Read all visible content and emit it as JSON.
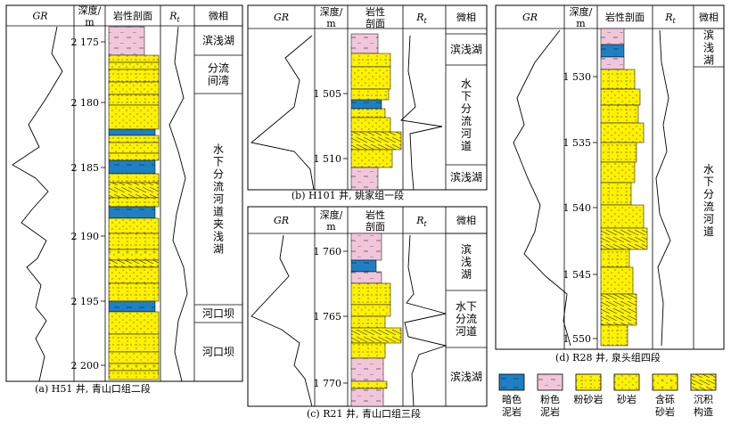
{
  "panels": [
    {
      "caption": "(a) H51 井, 青山口组二段",
      "headers": {
        "gr": "GR",
        "depth_line1": "深度/",
        "depth_line2": "m",
        "litho": "岩性剖面",
        "rt": "R",
        "rt_sub": "t",
        "facies": "微相"
      },
      "depths": [
        "2 175",
        "2 180",
        "2 185",
        "2 190",
        "2 195",
        "2 200"
      ],
      "facies": [
        {
          "label": "滨浅湖"
        },
        {
          "label": "分流\n间湾"
        },
        {
          "label": "水\n下\n分\n流\n河\n道\n夹\n浅\n湖"
        },
        {
          "label": "河口坝"
        },
        {
          "label": "河口坝"
        }
      ]
    },
    {
      "caption": "(b) H101 井, 姚家组一段",
      "headers": {
        "gr": "GR",
        "depth_line1": "深度/",
        "depth_line2": "m",
        "litho_line1": "岩性",
        "litho_line2": "剖面",
        "rt": "R",
        "rt_sub": "t",
        "facies": "微相"
      },
      "depths": [
        "1 505",
        "1 510"
      ],
      "facies": [
        {
          "label": "滨浅湖"
        },
        {
          "label": "水\n下\n分\n流\n河\n道"
        },
        {
          "label": "滨浅湖"
        }
      ]
    },
    {
      "caption": "(c) R21 井, 青山口组三段",
      "headers": {
        "gr": "GR",
        "depth_line1": "深度/",
        "depth_line2": "m",
        "litho_line1": "岩性",
        "litho_line2": "剖面",
        "rt": "R",
        "rt_sub": "t",
        "facies": "微相"
      },
      "depths": [
        "1 760",
        "1 765",
        "1 770"
      ],
      "facies": [
        {
          "label": "滨\n浅\n湖"
        },
        {
          "label": "水下\n分流\n河道"
        },
        {
          "label": "滨浅湖"
        }
      ]
    },
    {
      "caption": "(d) R28 井, 泉头组四段",
      "headers": {
        "gr": "GR",
        "depth_line1": "深度/",
        "depth_line2": "m",
        "litho": "岩性剖面",
        "rt": "R",
        "rt_sub": "t",
        "facies": "微相"
      },
      "depths": [
        "1 530",
        "1 535",
        "1 540",
        "1 545",
        "1 550"
      ],
      "facies": [
        {
          "label": "滨\n浅\n湖"
        },
        {
          "label": "水\n下\n分\n流\n河\n道"
        }
      ]
    }
  ],
  "legend": [
    {
      "label": "暗色\n泥岩",
      "pattern": "dark-mudstone"
    },
    {
      "label": "粉色\n泥岩",
      "pattern": "pink-mudstone"
    },
    {
      "label": "粉砂岩",
      "pattern": "siltstone"
    },
    {
      "label": "砂岩",
      "pattern": "sandstone"
    },
    {
      "label": "含砾\n砂岩",
      "pattern": "pebbly-sandstone"
    },
    {
      "label": "沉积\n构造",
      "pattern": "sed-structure"
    }
  ],
  "colors": {
    "dark_mudstone": "#1f7fc4",
    "pink_mudstone": "#f2c6da",
    "yellow": "#fff200",
    "line": "#000000"
  }
}
